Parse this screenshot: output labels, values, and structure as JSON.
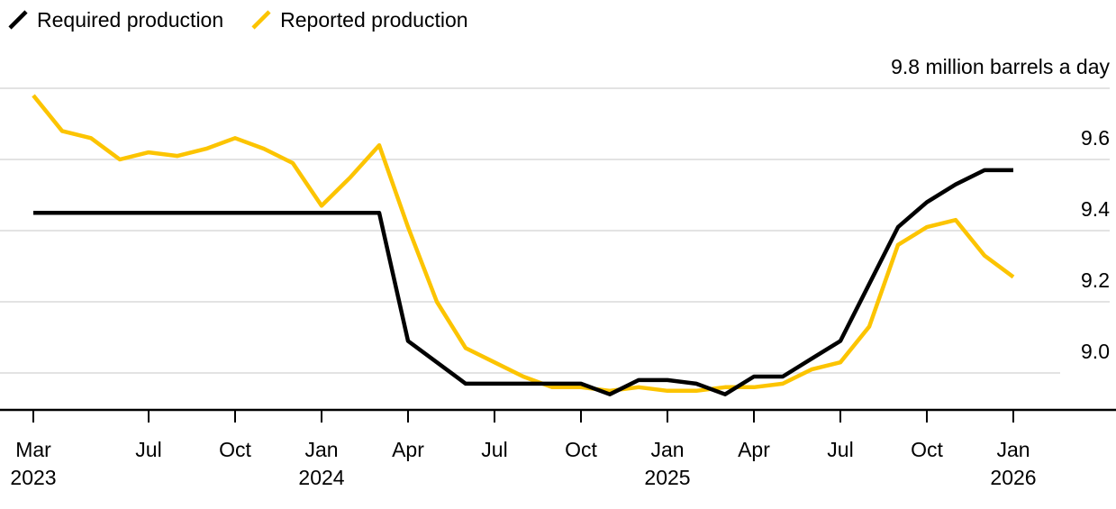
{
  "legend": {
    "items": [
      {
        "label": "Required production",
        "icon": "black-slash-icon",
        "color": "#000000"
      },
      {
        "label": "Reported production",
        "icon": "yellow-slash-icon",
        "color": "#FCC400"
      }
    ]
  },
  "chart_data": {
    "type": "line",
    "title": "",
    "unit_label": "9.8 million barrels a day",
    "unit": "million barrels a day",
    "frequency": "monthly",
    "x_start": "Mar 2023",
    "x_end": "Jan 2026",
    "grid": true,
    "legend_position": "top-left",
    "ylim": [
      8.9,
      9.8
    ],
    "x_labels": [
      "Mar 2023",
      "Apr 2023",
      "May 2023",
      "Jun 2023",
      "Jul 2023",
      "Aug 2023",
      "Sep 2023",
      "Oct 2023",
      "Nov 2023",
      "Dec 2023",
      "Jan 2024",
      "Feb 2024",
      "Mar 2024",
      "Apr 2024",
      "May 2024",
      "Jun 2024",
      "Jul 2024",
      "Aug 2024",
      "Sep 2024",
      "Oct 2024",
      "Nov 2024",
      "Dec 2024",
      "Jan 2025",
      "Feb 2025",
      "Mar 2025",
      "Apr 2025",
      "May 2025",
      "Jun 2025",
      "Jul 2025",
      "Aug 2025",
      "Sep 2025",
      "Oct 2025",
      "Nov 2025",
      "Dec 2025",
      "Jan 2026"
    ],
    "x_ticks": [
      {
        "label": "Mar",
        "year": "2023",
        "month_index": 0
      },
      {
        "label": "Jul",
        "month_index": 4
      },
      {
        "label": "Oct",
        "month_index": 7
      },
      {
        "label": "Jan",
        "year": "2024",
        "month_index": 10
      },
      {
        "label": "Apr",
        "month_index": 13
      },
      {
        "label": "Jul",
        "month_index": 16
      },
      {
        "label": "Oct",
        "month_index": 19
      },
      {
        "label": "Jan",
        "year": "2025",
        "month_index": 22
      },
      {
        "label": "Apr",
        "month_index": 25
      },
      {
        "label": "Jul",
        "month_index": 28
      },
      {
        "label": "Oct",
        "month_index": 31
      },
      {
        "label": "Jan",
        "year": "2026",
        "month_index": 34
      }
    ],
    "y_ticks": [
      {
        "label": "9.6",
        "value": 9.6
      },
      {
        "label": "9.4",
        "value": 9.4
      },
      {
        "label": "9.2",
        "value": 9.2
      },
      {
        "label": "9.0",
        "value": 9.0
      }
    ],
    "y_gridlines": [
      9.8,
      9.6,
      9.4,
      9.2,
      9.0
    ],
    "series": [
      {
        "name": "Required production",
        "color": "#000000",
        "values": [
          9.45,
          9.45,
          9.45,
          9.45,
          9.45,
          9.45,
          9.45,
          9.45,
          9.45,
          9.45,
          9.45,
          9.45,
          9.45,
          9.09,
          9.03,
          8.97,
          8.97,
          8.97,
          8.97,
          8.97,
          8.94,
          8.98,
          8.98,
          8.97,
          8.94,
          8.99,
          8.99,
          9.04,
          9.09,
          9.25,
          9.41,
          9.48,
          9.53,
          9.57,
          9.57
        ]
      },
      {
        "name": "Reported production",
        "color": "#FCC400",
        "values": [
          9.78,
          9.68,
          9.66,
          9.6,
          9.62,
          9.61,
          9.63,
          9.66,
          9.63,
          9.59,
          9.47,
          9.55,
          9.64,
          9.41,
          9.2,
          9.07,
          9.03,
          8.99,
          8.96,
          8.96,
          8.95,
          8.96,
          8.95,
          8.95,
          8.96,
          8.96,
          8.97,
          9.01,
          9.03,
          9.13,
          9.36,
          9.41,
          9.43,
          9.33,
          9.27
        ]
      }
    ],
    "colors": {
      "grid": "#E3E3E3",
      "axis": "#000000",
      "text": "#000000"
    }
  }
}
